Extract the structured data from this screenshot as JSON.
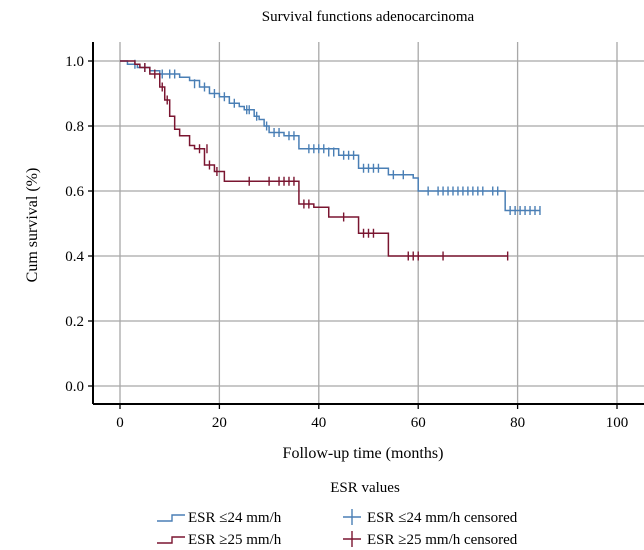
{
  "chart_data": {
    "type": "line",
    "title": "Survival functions adenocarcinoma",
    "xlabel": "Follow-up time (months)",
    "ylabel": "Cum survival (%)",
    "xlim": [
      0,
      100
    ],
    "ylim": [
      0,
      1.0
    ],
    "x_ticks": [
      0,
      20,
      40,
      60,
      80,
      100
    ],
    "y_ticks": [
      0.0,
      0.2,
      0.4,
      0.6,
      0.8,
      1.0
    ],
    "x_tick_labels": [
      "0",
      "20",
      "40",
      "60",
      "80",
      "100"
    ],
    "y_tick_labels": [
      "0.0",
      "0.2",
      "0.4",
      "0.6",
      "0.8",
      "1.0"
    ],
    "grid": true,
    "legend_title": "ESR values",
    "legend_position": "bottom",
    "legend_entries": [
      "ESR ≤24 mm/h",
      "ESR ≤24 mm/h censored",
      "ESR ≥25 mm/h",
      "ESR ≥25 mm/h censored"
    ],
    "series": [
      {
        "name": "ESR ≤24 mm/h",
        "color": "#4a7fb5",
        "steps": [
          [
            0,
            1.0
          ],
          [
            1.5,
            0.99
          ],
          [
            3.5,
            0.98
          ],
          [
            6,
            0.97
          ],
          [
            8,
            0.96
          ],
          [
            12,
            0.95
          ],
          [
            14,
            0.94
          ],
          [
            16,
            0.92
          ],
          [
            18,
            0.9
          ],
          [
            20,
            0.89
          ],
          [
            22,
            0.87
          ],
          [
            24,
            0.86
          ],
          [
            25,
            0.85
          ],
          [
            27,
            0.83
          ],
          [
            28,
            0.82
          ],
          [
            29,
            0.8
          ],
          [
            30,
            0.78
          ],
          [
            33,
            0.77
          ],
          [
            36,
            0.73
          ],
          [
            44,
            0.71
          ],
          [
            48,
            0.67
          ],
          [
            54,
            0.65
          ],
          [
            59,
            0.64
          ],
          [
            60,
            0.6
          ],
          [
            77.5,
            0.54
          ],
          [
            84.5,
            0.54
          ]
        ],
        "censored": [
          [
            3,
            0.99
          ],
          [
            5,
            0.98
          ],
          [
            8.5,
            0.96
          ],
          [
            10,
            0.96
          ],
          [
            11,
            0.96
          ],
          [
            15,
            0.93
          ],
          [
            17,
            0.92
          ],
          [
            19,
            0.9
          ],
          [
            21,
            0.89
          ],
          [
            23,
            0.87
          ],
          [
            25.5,
            0.85
          ],
          [
            26,
            0.85
          ],
          [
            27.5,
            0.83
          ],
          [
            29.5,
            0.8
          ],
          [
            31,
            0.78
          ],
          [
            32,
            0.78
          ],
          [
            34,
            0.77
          ],
          [
            35,
            0.77
          ],
          [
            38,
            0.73
          ],
          [
            39,
            0.73
          ],
          [
            40,
            0.73
          ],
          [
            41,
            0.73
          ],
          [
            42,
            0.72
          ],
          [
            43,
            0.72
          ],
          [
            45,
            0.71
          ],
          [
            46,
            0.71
          ],
          [
            47,
            0.71
          ],
          [
            49,
            0.67
          ],
          [
            50,
            0.67
          ],
          [
            51,
            0.67
          ],
          [
            52,
            0.67
          ],
          [
            55,
            0.65
          ],
          [
            57,
            0.65
          ],
          [
            62,
            0.6
          ],
          [
            64,
            0.6
          ],
          [
            65,
            0.6
          ],
          [
            66,
            0.6
          ],
          [
            67,
            0.6
          ],
          [
            68,
            0.6
          ],
          [
            69,
            0.6
          ],
          [
            70,
            0.6
          ],
          [
            71,
            0.6
          ],
          [
            72,
            0.6
          ],
          [
            73,
            0.6
          ],
          [
            75,
            0.6
          ],
          [
            76,
            0.6
          ],
          [
            78.5,
            0.54
          ],
          [
            79.5,
            0.54
          ],
          [
            80.5,
            0.54
          ],
          [
            81.5,
            0.54
          ],
          [
            82.5,
            0.54
          ],
          [
            83.5,
            0.54
          ],
          [
            84.5,
            0.54
          ]
        ]
      },
      {
        "name": "ESR ≥25 mm/h",
        "color": "#7a1530",
        "steps": [
          [
            0,
            1.0
          ],
          [
            3,
            0.99
          ],
          [
            4,
            0.98
          ],
          [
            6,
            0.96
          ],
          [
            8,
            0.92
          ],
          [
            9,
            0.88
          ],
          [
            10,
            0.83
          ],
          [
            11,
            0.79
          ],
          [
            12,
            0.77
          ],
          [
            14,
            0.74
          ],
          [
            15,
            0.73
          ],
          [
            17,
            0.68
          ],
          [
            19,
            0.66
          ],
          [
            21,
            0.63
          ],
          [
            36,
            0.56
          ],
          [
            39,
            0.55
          ],
          [
            42,
            0.52
          ],
          [
            48,
            0.47
          ],
          [
            54,
            0.4
          ],
          [
            78,
            0.4
          ]
        ],
        "censored": [
          [
            5,
            0.98
          ],
          [
            7,
            0.96
          ],
          [
            8.5,
            0.92
          ],
          [
            9.5,
            0.88
          ],
          [
            16,
            0.73
          ],
          [
            17.5,
            0.73
          ],
          [
            18,
            0.68
          ],
          [
            19.5,
            0.66
          ],
          [
            26,
            0.63
          ],
          [
            30,
            0.63
          ],
          [
            32,
            0.63
          ],
          [
            33,
            0.63
          ],
          [
            34,
            0.63
          ],
          [
            35,
            0.63
          ],
          [
            37,
            0.56
          ],
          [
            38,
            0.56
          ],
          [
            45,
            0.52
          ],
          [
            49,
            0.47
          ],
          [
            50,
            0.47
          ],
          [
            51,
            0.47
          ],
          [
            58,
            0.4
          ],
          [
            59,
            0.4
          ],
          [
            60,
            0.4
          ],
          [
            65,
            0.4
          ],
          [
            78,
            0.4
          ]
        ]
      }
    ]
  }
}
